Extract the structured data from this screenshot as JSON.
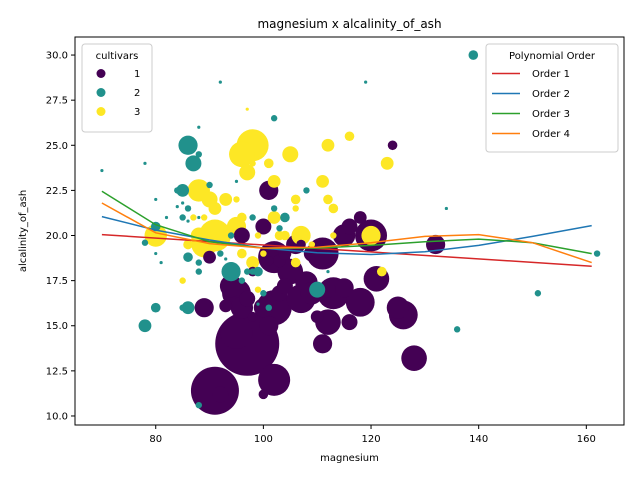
{
  "chart_data": {
    "type": "scatter",
    "title": "magnesium x alcalinity_of_ash",
    "xlabel": "magnesium",
    "ylabel": "alcalinity_of_ash",
    "xlim": [
      65,
      167
    ],
    "ylim": [
      9.5,
      31
    ],
    "xticks": [
      80,
      100,
      120,
      140,
      160
    ],
    "yticks": [
      10.0,
      12.5,
      15.0,
      17.5,
      20.0,
      22.5,
      25.0,
      27.5,
      30.0
    ],
    "xtick_labels": [
      "80",
      "100",
      "120",
      "140",
      "160"
    ],
    "ytick_labels": [
      "10.0",
      "12.5",
      "15.0",
      "17.5",
      "20.0",
      "22.5",
      "25.0",
      "27.5",
      "30.0"
    ],
    "grid": false,
    "colors": {
      "1": "#440154",
      "2": "#21918c",
      "3": "#fde725"
    },
    "legend_cultivars": {
      "title": "cultivars",
      "placement": "top-left",
      "entries": [
        {
          "label": "1",
          "color": "#440154"
        },
        {
          "label": "2",
          "color": "#21918c"
        },
        {
          "label": "3",
          "color": "#fde725"
        }
      ]
    },
    "legend_poly": {
      "title": "Polynomial Order",
      "placement": "top-right",
      "entries": [
        {
          "label": "Order 1",
          "color": "#d62728"
        },
        {
          "label": "Order 2",
          "color": "#1f77b4"
        },
        {
          "label": "Order 3",
          "color": "#2ca02c"
        },
        {
          "label": "Order 4",
          "color": "#ff7f0e"
        }
      ]
    },
    "fit_lines": [
      {
        "order": 1,
        "color": "#d62728",
        "x": [
          70,
          161
        ],
        "y": [
          20.05,
          18.3
        ]
      },
      {
        "order": 2,
        "color": "#1f77b4",
        "x": [
          70,
          80,
          90,
          100,
          110,
          120,
          130,
          140,
          150,
          161
        ],
        "y": [
          21.05,
          20.3,
          19.75,
          19.3,
          19.05,
          18.95,
          19.1,
          19.45,
          19.95,
          20.55
        ]
      },
      {
        "order": 3,
        "color": "#2ca02c",
        "x": [
          70,
          80,
          90,
          100,
          110,
          120,
          130,
          140,
          150,
          161
        ],
        "y": [
          22.45,
          20.6,
          19.65,
          19.3,
          19.3,
          19.45,
          19.65,
          19.8,
          19.6,
          19.0
        ]
      },
      {
        "order": 4,
        "color": "#ff7f0e",
        "x": [
          70,
          80,
          90,
          100,
          110,
          120,
          130,
          140,
          150,
          161
        ],
        "y": [
          21.8,
          20.15,
          19.55,
          19.3,
          19.35,
          19.6,
          19.95,
          20.05,
          19.6,
          18.5
        ]
      }
    ],
    "series": [
      {
        "name": "1",
        "color": "#440154",
        "points": [
          [
            91,
            11.4,
            15
          ],
          [
            97,
            14,
            20
          ],
          [
            102,
            12,
            10
          ],
          [
            128,
            13.2,
            8
          ],
          [
            95,
            14.6,
            10
          ],
          [
            92,
            11.2,
            5
          ],
          [
            100,
            11.2,
            3
          ],
          [
            101,
            15,
            6
          ],
          [
            111,
            14,
            6
          ],
          [
            126,
            15.6,
            9
          ],
          [
            125,
            16,
            7
          ],
          [
            112,
            15.2,
            8
          ],
          [
            116,
            15.2,
            5
          ],
          [
            110,
            15.5,
            4
          ],
          [
            96,
            16,
            7
          ],
          [
            97,
            16.5,
            5
          ],
          [
            98,
            15.5,
            3
          ],
          [
            93,
            16.1,
            4
          ],
          [
            94,
            17.2,
            7
          ],
          [
            95,
            16.8,
            9
          ],
          [
            102,
            16,
            11
          ],
          [
            103,
            16.8,
            5
          ],
          [
            100,
            16,
            6
          ],
          [
            107,
            16.5,
            9
          ],
          [
            108,
            17.4,
            7
          ],
          [
            104,
            17.2,
            5
          ],
          [
            105,
            18,
            8
          ],
          [
            103,
            18.6,
            4
          ],
          [
            106,
            19.5,
            6
          ],
          [
            109,
            19,
            5
          ],
          [
            111,
            19,
            10
          ],
          [
            112,
            17,
            5
          ],
          [
            113,
            16.8,
            10
          ],
          [
            115,
            17.1,
            6
          ],
          [
            118,
            16.3,
            9
          ],
          [
            121,
            17.6,
            8
          ],
          [
            120,
            20,
            10
          ],
          [
            115,
            20,
            7
          ],
          [
            116,
            20.5,
            5
          ],
          [
            118,
            21,
            4
          ],
          [
            101,
            22.5,
            6
          ],
          [
            124,
            25,
            3
          ],
          [
            132,
            19.5,
            6
          ],
          [
            89,
            16,
            6
          ],
          [
            90,
            18.8,
            4
          ],
          [
            96,
            20,
            5
          ],
          [
            98,
            18,
            3
          ],
          [
            100,
            20.5,
            5
          ],
          [
            101,
            18.6,
            3
          ],
          [
            102,
            18.8,
            10
          ],
          [
            104,
            19,
            4
          ],
          [
            107,
            19.5,
            3
          ],
          [
            109,
            16.8,
            7
          ]
        ]
      },
      {
        "name": "2",
        "color": "#21918c",
        "points": [
          [
            139,
            30,
            3
          ],
          [
            92,
            28.5,
            1
          ],
          [
            119,
            28.5,
            1
          ],
          [
            102,
            26.5,
            2
          ],
          [
            88,
            26,
            1
          ],
          [
            86,
            25,
            6
          ],
          [
            78,
            24,
            1
          ],
          [
            88,
            24.5,
            2
          ],
          [
            87,
            24,
            5
          ],
          [
            70,
            23.6,
            1
          ],
          [
            90,
            22.8,
            2
          ],
          [
            85,
            22.5,
            4
          ],
          [
            84,
            22.5,
            2
          ],
          [
            80,
            22,
            1
          ],
          [
            85,
            21.8,
            1
          ],
          [
            86,
            21.5,
            2
          ],
          [
            84,
            21.6,
            1
          ],
          [
            82,
            21,
            1
          ],
          [
            85,
            21,
            2
          ],
          [
            88,
            21,
            1
          ],
          [
            80,
            20.5,
            3
          ],
          [
            86,
            20.8,
            1
          ],
          [
            78,
            19.6,
            2
          ],
          [
            80,
            19,
            1
          ],
          [
            81,
            18.5,
            1
          ],
          [
            86,
            18.8,
            3
          ],
          [
            88,
            18.5,
            2
          ],
          [
            92,
            19,
            2
          ],
          [
            94,
            18,
            6
          ],
          [
            96,
            17.5,
            2
          ],
          [
            99,
            18,
            3
          ],
          [
            97,
            18,
            2
          ],
          [
            98,
            18,
            2
          ],
          [
            88,
            18,
            2
          ],
          [
            80,
            16,
            3
          ],
          [
            78,
            15,
            4
          ],
          [
            85,
            16,
            2
          ],
          [
            86,
            16,
            4
          ],
          [
            88,
            10.6,
            2
          ],
          [
            110,
            17,
            5
          ],
          [
            112,
            18,
            1
          ],
          [
            100,
            16.8,
            2
          ],
          [
            101,
            16.0,
            2
          ],
          [
            104,
            21,
            3
          ],
          [
            108,
            22.5,
            2
          ],
          [
            102,
            21.5,
            2
          ],
          [
            134,
            21.5,
            1
          ],
          [
            136,
            14.8,
            2
          ],
          [
            151,
            16.8,
            2
          ],
          [
            162,
            19,
            2
          ],
          [
            103,
            20.4,
            2
          ],
          [
            94,
            20,
            2
          ],
          [
            98,
            21,
            2
          ],
          [
            95,
            23,
            1
          ],
          [
            93,
            18.7,
            1
          ],
          [
            99,
            16.2,
            1
          ]
        ]
      },
      {
        "name": "3",
        "color": "#fde725",
        "points": [
          [
            97,
            27,
            1
          ],
          [
            98,
            25,
            10
          ],
          [
            96,
            24.5,
            8
          ],
          [
            116,
            25.5,
            3
          ],
          [
            112,
            25,
            4
          ],
          [
            123,
            24,
            4
          ],
          [
            105,
            24.5,
            5
          ],
          [
            101,
            24,
            3
          ],
          [
            98,
            24,
            2
          ],
          [
            97,
            23.5,
            5
          ],
          [
            111,
            23,
            4
          ],
          [
            102,
            23,
            4
          ],
          [
            90,
            22,
            5
          ],
          [
            88,
            22.5,
            7
          ],
          [
            93,
            22,
            4
          ],
          [
            95,
            22,
            2
          ],
          [
            106,
            22,
            3
          ],
          [
            112,
            22,
            3
          ],
          [
            91,
            21.5,
            4
          ],
          [
            87,
            21,
            2
          ],
          [
            89,
            21,
            2
          ],
          [
            96,
            21,
            3
          ],
          [
            102,
            21,
            4
          ],
          [
            106,
            21.5,
            2
          ],
          [
            113,
            21.5,
            3
          ],
          [
            95,
            20.5,
            6
          ],
          [
            91,
            20,
            10
          ],
          [
            89,
            19.5,
            8
          ],
          [
            88,
            20,
            5
          ],
          [
            80,
            20,
            7
          ],
          [
            86,
            19.5,
            3
          ],
          [
            92,
            20,
            3
          ],
          [
            99,
            20,
            2
          ],
          [
            103,
            20,
            3
          ],
          [
            104,
            20,
            3
          ],
          [
            107,
            20,
            6
          ],
          [
            113,
            20,
            2
          ],
          [
            120,
            20,
            6
          ],
          [
            85,
            17.5,
            2
          ],
          [
            98,
            18.5,
            4
          ],
          [
            106,
            18.5,
            3
          ],
          [
            122,
            18,
            3
          ],
          [
            99,
            17,
            2
          ],
          [
            96,
            19,
            3
          ],
          [
            100,
            19,
            2
          ],
          [
            109,
            19.5,
            2
          ]
        ]
      }
    ]
  }
}
